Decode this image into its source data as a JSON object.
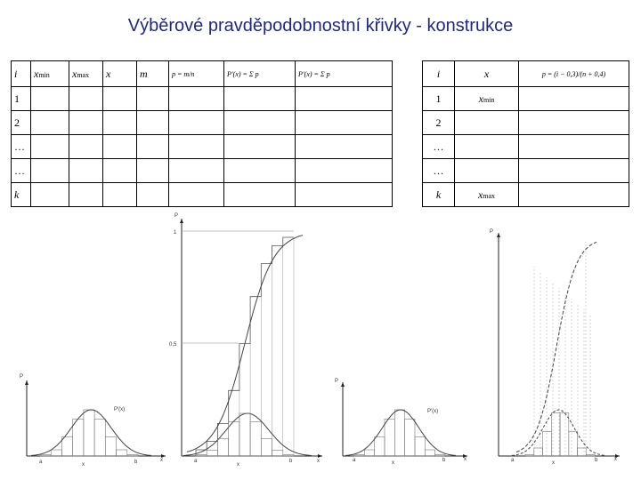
{
  "title": "Výběrové pravděpodobnostní křivky - konstrukce",
  "table_left": {
    "headers": [
      "i",
      "x",
      "x",
      "x",
      "m",
      "p = m/n",
      "P'(x) = Σ p",
      "P'(x) = Σ p"
    ],
    "header_subs": [
      "",
      "min",
      "max",
      "",
      "",
      "",
      "",
      ""
    ],
    "rows": [
      "1",
      "2",
      "…",
      "…",
      "k"
    ]
  },
  "table_right": {
    "headers": [
      "i",
      "x",
      "p = (i − 0,3)/(n + 0,4)"
    ],
    "rows": [
      {
        "i": "1",
        "x": "x",
        "x_sub": "min"
      },
      {
        "i": "2",
        "x": "",
        "x_sub": ""
      },
      {
        "i": "…",
        "x": "",
        "x_sub": ""
      },
      {
        "i": "…",
        "x": "",
        "x_sub": ""
      },
      {
        "i": "k",
        "x": "x",
        "x_sub": "max"
      }
    ]
  },
  "chart_left": {
    "y_label": "P",
    "x_label": "x",
    "curve_label": "P'(x)",
    "x_ticks": [
      "a",
      "x",
      "b"
    ]
  },
  "chart_middle": {
    "y_label": "P",
    "x_label": "x",
    "y_ticks": [
      "1",
      "0,5"
    ],
    "x_ticks": [
      "a",
      "x",
      "b"
    ]
  },
  "chart_small": {
    "y_label": "P",
    "x_label": "x",
    "curve_label": "P'(x)",
    "x_ticks": [
      "a",
      "x",
      "b"
    ]
  },
  "chart_right": {
    "y_label": "P",
    "x_label": "x",
    "x_ticks": [
      "a",
      "x",
      "b"
    ]
  }
}
